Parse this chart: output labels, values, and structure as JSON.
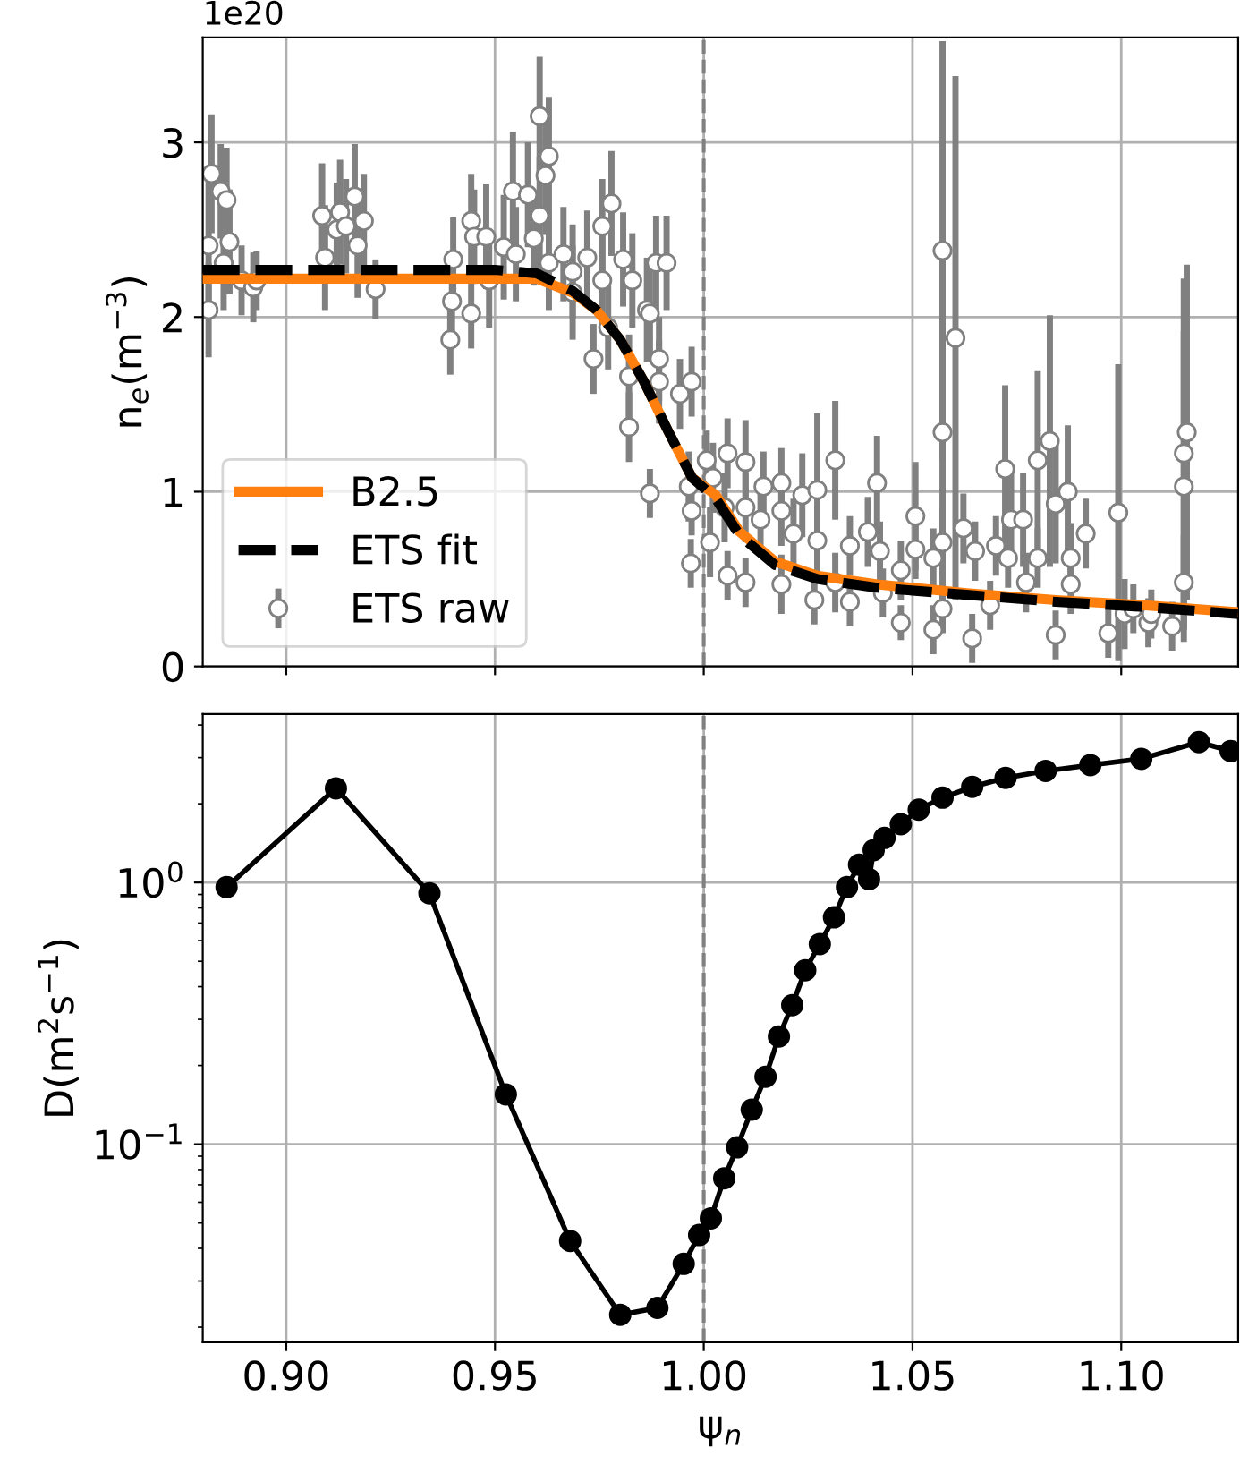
{
  "chart_data": [
    {
      "type": "line",
      "ylabel": "n$_{e}$(m$^{−3}$)",
      "annotations": [
        "1e20"
      ],
      "xlim": [
        0.88,
        1.128
      ],
      "xticks": [
        0.9,
        0.95,
        1.0,
        1.05,
        1.1
      ],
      "ylim": [
        0,
        3.6
      ],
      "yticks": [
        0,
        1,
        2,
        3
      ],
      "tick_labels": "y",
      "grid": true,
      "legend": "bottom left",
      "ref_lines": [
        {
          "axis": "x",
          "value": 1.0,
          "color": "#808080",
          "line_style": "dashed"
        }
      ],
      "series": [
        {
          "name": "B2.5",
          "type": "line",
          "color": "#ff7f0e",
          "line_style": "solid",
          "x": [
            0.88,
            0.955,
            0.96,
            0.9686,
            0.9743,
            0.98,
            0.9857,
            0.9914,
            0.9972,
            1.0029,
            1.0086,
            1.0171,
            1.0272,
            1.0415,
            1.0629,
            1.0843,
            1.1057,
            1.128
          ],
          "values": [
            2.22,
            2.22,
            2.22,
            2.14,
            2.04,
            1.87,
            1.63,
            1.35,
            1.08,
            0.98,
            0.77,
            0.6,
            0.52,
            0.47,
            0.42,
            0.38,
            0.35,
            0.31
          ]
        },
        {
          "name": "ETS fit",
          "type": "line",
          "color": "#000000",
          "line_style": "dashed",
          "x": [
            0.88,
            0.95,
            0.96,
            0.9686,
            0.9743,
            0.98,
            0.9857,
            0.9914,
            0.9972,
            1.0029,
            1.0086,
            1.0171,
            1.0272,
            1.0415,
            1.0629,
            1.0843,
            1.1057,
            1.128
          ],
          "values": [
            2.27,
            2.27,
            2.25,
            2.15,
            2.04,
            1.87,
            1.63,
            1.35,
            1.08,
            0.96,
            0.75,
            0.58,
            0.5,
            0.45,
            0.41,
            0.37,
            0.34,
            0.3
          ]
        },
        {
          "name": "ETS raw",
          "type": "scatter",
          "color": "#808080",
          "marker": "circle",
          "x": [
            0.8821,
            0.8814,
            0.8843,
            0.8857,
            0.8864,
            0.885,
            0.8814,
            0.8893,
            0.8921,
            0.8929,
            0.9086,
            0.9093,
            0.9121,
            0.9129,
            0.9143,
            0.9164,
            0.9171,
            0.9186,
            0.9214,
            0.9393,
            0.9397,
            0.94,
            0.9443,
            0.9443,
            0.945,
            0.9479,
            0.9486,
            0.9521,
            0.9543,
            0.955,
            0.9579,
            0.9593,
            0.9607,
            0.9607,
            0.9621,
            0.9629,
            0.9629,
            0.9664,
            0.9686,
            0.9686,
            0.9721,
            0.9736,
            0.9757,
            0.9757,
            0.9771,
            0.9779,
            0.9807,
            0.9821,
            0.9821,
            0.9829,
            0.9864,
            0.9871,
            0.9871,
            0.9886,
            0.9893,
            0.9893,
            0.9911,
            0.9943,
            0.9964,
            0.9971,
            0.9971,
            0.9969,
            1.0007,
            1.0015,
            1.0022,
            1.0057,
            1.0057,
            1.005,
            1.01,
            1.01,
            1.01,
            1.0143,
            1.0136,
            1.0186,
            1.0186,
            1.0186,
            1.0215,
            1.0236,
            1.0265,
            1.0272,
            1.0272,
            1.0315,
            1.0315,
            1.035,
            1.035,
            1.0393,
            1.0415,
            1.0422,
            1.0429,
            1.0472,
            1.0472,
            1.0507,
            1.0507,
            1.055,
            1.055,
            1.0572,
            1.0572,
            1.0572,
            1.0572,
            1.0603,
            1.0622,
            1.0643,
            1.065,
            1.0686,
            1.07,
            1.0722,
            1.0729,
            1.0736,
            1.0765,
            1.0772,
            1.08,
            1.08,
            1.0829,
            1.0843,
            1.0843,
            1.0872,
            1.0879,
            1.0879,
            1.0915,
            1.0969,
            1.0993,
            1.1008,
            1.1029,
            1.1065,
            1.1072,
            1.1122,
            1.115,
            1.115,
            1.1157,
            1.115
          ],
          "values": [
            2.82,
            2.41,
            2.72,
            2.67,
            2.43,
            2.31,
            2.04,
            2.21,
            2.17,
            2.21,
            2.58,
            2.34,
            2.5,
            2.6,
            2.52,
            2.69,
            2.41,
            2.55,
            2.16,
            1.87,
            2.09,
            2.33,
            2.02,
            2.55,
            2.46,
            2.46,
            2.21,
            2.4,
            2.72,
            2.36,
            2.7,
            2.45,
            3.15,
            2.58,
            2.81,
            2.92,
            2.31,
            2.36,
            2.26,
            2.14,
            2.34,
            1.76,
            2.52,
            2.21,
            1.94,
            2.65,
            2.33,
            1.66,
            1.37,
            2.21,
            2.04,
            2.02,
            0.99,
            2.31,
            1.76,
            1.63,
            2.31,
            1.56,
            1.03,
            1.63,
            0.89,
            0.59,
            1.18,
            0.71,
            1.08,
            1.22,
            0.52,
            0.91,
            1.17,
            0.48,
            0.91,
            1.03,
            0.84,
            1.05,
            0.89,
            0.47,
            0.76,
            0.98,
            0.38,
            1.01,
            0.72,
            1.18,
            0.48,
            0.37,
            0.69,
            0.77,
            1.05,
            0.66,
            0.42,
            0.25,
            0.55,
            0.86,
            0.67,
            0.62,
            0.21,
            2.38,
            1.34,
            0.71,
            0.33,
            1.88,
            0.79,
            0.16,
            0.66,
            0.35,
            0.69,
            1.13,
            0.62,
            0.84,
            0.84,
            0.48,
            0.62,
            1.18,
            1.29,
            0.93,
            0.18,
            1.0,
            0.62,
            0.47,
            0.76,
            0.19,
            0.88,
            0.3,
            0.33,
            0.25,
            0.3,
            0.23,
            1.03,
            1.22,
            1.34,
            0.48
          ],
          "errors": [
            0.34,
            0.37,
            0.27,
            0.3,
            0.3,
            0.27,
            0.27,
            0.2,
            0.2,
            0.17,
            0.3,
            0.3,
            0.27,
            0.3,
            0.27,
            0.3,
            0.3,
            0.27,
            0.17,
            0.2,
            0.24,
            0.24,
            0.2,
            0.27,
            0.27,
            0.3,
            0.27,
            0.3,
            0.34,
            0.27,
            0.3,
            0.27,
            0.34,
            0.34,
            0.34,
            0.34,
            0.27,
            0.27,
            0.27,
            0.27,
            0.27,
            0.2,
            0.27,
            0.27,
            0.24,
            0.3,
            0.27,
            0.24,
            0.2,
            0.27,
            0.3,
            0.27,
            0.14,
            0.27,
            0.24,
            0.24,
            0.27,
            0.2,
            0.2,
            0.2,
            0.14,
            0.14,
            0.17,
            0.2,
            0.2,
            0.2,
            0.14,
            0.2,
            0.24,
            0.14,
            0.2,
            0.2,
            0.2,
            0.2,
            0.2,
            0.17,
            0.2,
            0.24,
            0.14,
            0.44,
            0.2,
            0.34,
            0.17,
            0.14,
            0.17,
            0.2,
            0.27,
            0.17,
            0.14,
            0.1,
            0.17,
            0.31,
            0.17,
            0.17,
            0.14,
            1.2,
            1.0,
            0.2,
            0.14,
            1.5,
            0.2,
            0.14,
            0.17,
            0.14,
            0.17,
            0.48,
            0.17,
            0.27,
            0.27,
            0.17,
            0.17,
            0.51,
            0.72,
            0.34,
            0.14,
            0.38,
            0.2,
            0.17,
            0.2,
            0.14,
            0.85,
            0.2,
            0.14,
            0.14,
            0.14,
            0.14,
            0.89,
            1.0,
            0.96,
            0.27
          ]
        }
      ]
    },
    {
      "type": "line",
      "xlabel": "ψ$_{n}$",
      "ylabel": "D(m$^{2}$s$^{−1}$)",
      "log": "y",
      "xlim": [
        0.88,
        1.128
      ],
      "xticks": [
        {
          "value": 0.9,
          "label": "0.90"
        },
        {
          "value": 0.95,
          "label": "0.95"
        },
        {
          "value": 1.0,
          "label": "1.00"
        },
        {
          "value": 1.05,
          "label": "1.05"
        },
        {
          "value": 1.1,
          "label": "1.10"
        }
      ],
      "ylim": [
        0.0175,
        4.4
      ],
      "yticks": [
        {
          "value": 0.1,
          "label": "10$^{−1}$"
        },
        {
          "value": 1,
          "label": "10$^{0}$"
        }
      ],
      "grid": true,
      "marker": "circle",
      "line_style": "solid",
      "ref_lines": [
        {
          "axis": "x",
          "value": 1.0,
          "color": "#808080",
          "line_style": "dashed"
        }
      ],
      "series": [
        {
          "color": "#000000",
          "x": [
            0.8857,
            0.9119,
            0.9343,
            0.9526,
            0.968,
            0.98,
            0.9889,
            0.9952,
            0.9989,
            1.0017,
            1.0049,
            1.008,
            1.0115,
            1.0148,
            1.018,
            1.0212,
            1.0243,
            1.0278,
            1.0312,
            1.0343,
            1.0372,
            1.0396,
            1.0407,
            1.0433,
            1.0472,
            1.0515,
            1.0572,
            1.0643,
            1.0723,
            1.0819,
            1.0926,
            1.1048,
            1.1186,
            1.1262
          ],
          "values": [
            0.96,
            2.29,
            0.91,
            0.155,
            0.0427,
            0.0223,
            0.0237,
            0.0349,
            0.045,
            0.0521,
            0.0741,
            0.0973,
            0.1355,
            0.181,
            0.258,
            0.34,
            0.462,
            0.582,
            0.736,
            0.96,
            1.17,
            1.03,
            1.33,
            1.48,
            1.67,
            1.9,
            2.11,
            2.32,
            2.51,
            2.67,
            2.81,
            2.97,
            3.44,
            3.18
          ]
        }
      ]
    }
  ]
}
